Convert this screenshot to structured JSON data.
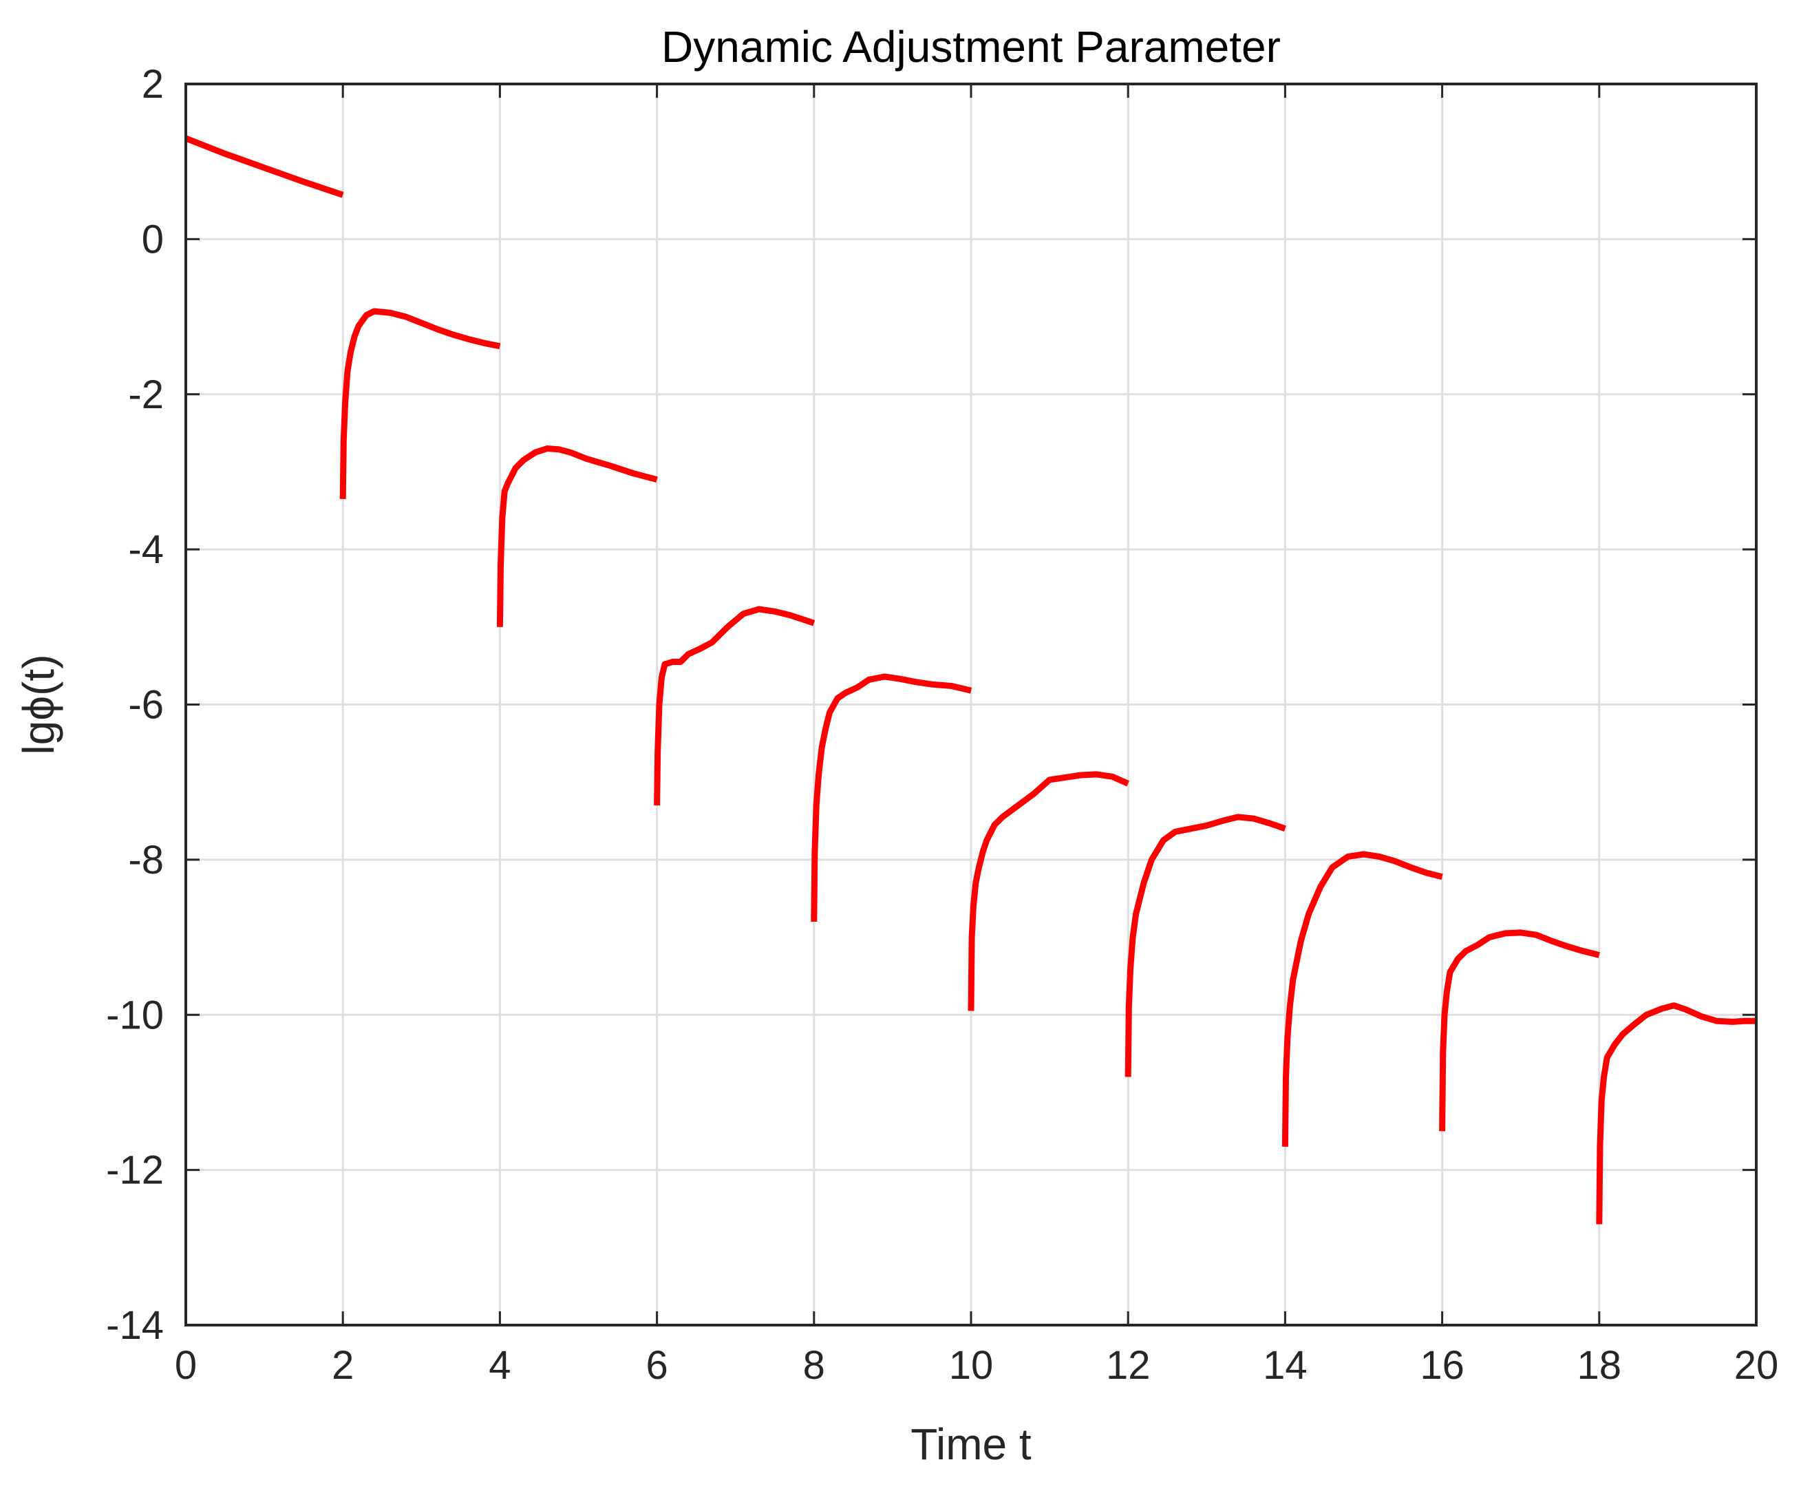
{
  "chart_data": {
    "type": "line",
    "title": "Dynamic Adjustment Parameter",
    "xlabel": "Time t",
    "ylabel": "lgϕ(t)",
    "xlim": [
      0,
      20
    ],
    "ylim": [
      -14,
      2
    ],
    "xticks": [
      0,
      2,
      4,
      6,
      8,
      10,
      12,
      14,
      16,
      18,
      20
    ],
    "yticks": [
      2,
      0,
      -2,
      -4,
      -6,
      -8,
      -10,
      -12,
      -14
    ],
    "xtick_labels": [
      "0",
      "2",
      "4",
      "6",
      "8",
      "10",
      "12",
      "14",
      "16",
      "18",
      "20"
    ],
    "ytick_labels": [
      "2",
      "0",
      "-2",
      "-4",
      "-6",
      "-8",
      "-10",
      "-12",
      "-14"
    ],
    "grid": true,
    "legend": null,
    "line_color": "#ff0000",
    "series": [
      {
        "segments": [
          {
            "x": [
              0,
              0.5,
              1,
              1.5,
              2
            ],
            "y": [
              1.3,
              1.1,
              0.92,
              0.74,
              0.57
            ]
          },
          {
            "x": [
              2.0,
              2.01,
              2.03,
              2.06,
              2.1,
              2.15,
              2.2,
              2.3,
              2.4,
              2.6,
              2.8,
              3.0,
              3.2,
              3.4,
              3.6,
              3.8,
              4.0
            ],
            "y": [
              -3.35,
              -2.6,
              -2.1,
              -1.7,
              -1.45,
              -1.25,
              -1.12,
              -0.98,
              -0.93,
              -0.95,
              -1.0,
              -1.08,
              -1.16,
              -1.23,
              -1.29,
              -1.34,
              -1.38
            ]
          },
          {
            "x": [
              4.0,
              4.01,
              4.03,
              4.06,
              4.1,
              4.2,
              4.3,
              4.45,
              4.6,
              4.75,
              4.9,
              5.1,
              5.4,
              5.7,
              6.0
            ],
            "y": [
              -5.0,
              -4.2,
              -3.6,
              -3.25,
              -3.15,
              -2.95,
              -2.85,
              -2.75,
              -2.7,
              -2.71,
              -2.75,
              -2.83,
              -2.92,
              -3.02,
              -3.1
            ]
          },
          {
            "x": [
              6.0,
              6.01,
              6.03,
              6.06,
              6.1,
              6.2,
              6.3,
              6.4,
              6.55,
              6.7,
              6.9,
              7.1,
              7.3,
              7.5,
              7.7,
              7.85,
              8.0
            ],
            "y": [
              -7.3,
              -6.6,
              -6.0,
              -5.65,
              -5.48,
              -5.45,
              -5.45,
              -5.35,
              -5.28,
              -5.2,
              -5.0,
              -4.83,
              -4.77,
              -4.8,
              -4.85,
              -4.9,
              -4.95
            ]
          },
          {
            "x": [
              8.0,
              8.01,
              8.03,
              8.06,
              8.1,
              8.15,
              8.2,
              8.3,
              8.4,
              8.55,
              8.7,
              8.9,
              9.1,
              9.3,
              9.5,
              9.75,
              10.0
            ],
            "y": [
              -8.8,
              -7.9,
              -7.3,
              -6.9,
              -6.55,
              -6.3,
              -6.1,
              -5.92,
              -5.85,
              -5.78,
              -5.68,
              -5.64,
              -5.67,
              -5.71,
              -5.74,
              -5.76,
              -5.82
            ]
          },
          {
            "x": [
              10.0,
              10.01,
              10.03,
              10.06,
              10.1,
              10.15,
              10.2,
              10.3,
              10.4,
              10.6,
              10.8,
              11.0,
              11.2,
              11.4,
              11.6,
              11.8,
              12.0
            ],
            "y": [
              -9.95,
              -9.0,
              -8.6,
              -8.3,
              -8.1,
              -7.9,
              -7.75,
              -7.55,
              -7.45,
              -7.3,
              -7.15,
              -6.97,
              -6.94,
              -6.91,
              -6.9,
              -6.93,
              -7.02
            ]
          },
          {
            "x": [
              12.0,
              12.01,
              12.03,
              12.06,
              12.1,
              12.2,
              12.3,
              12.45,
              12.6,
              12.8,
              13.0,
              13.2,
              13.4,
              13.6,
              13.8,
              14.0
            ],
            "y": [
              -10.8,
              -9.9,
              -9.4,
              -9.0,
              -8.7,
              -8.3,
              -8.0,
              -7.75,
              -7.64,
              -7.6,
              -7.56,
              -7.5,
              -7.45,
              -7.47,
              -7.53,
              -7.6
            ]
          },
          {
            "x": [
              14.0,
              14.01,
              14.03,
              14.06,
              14.1,
              14.2,
              14.3,
              14.45,
              14.6,
              14.8,
              15.0,
              15.2,
              15.4,
              15.6,
              15.8,
              16.0
            ],
            "y": [
              -11.7,
              -10.8,
              -10.3,
              -9.9,
              -9.55,
              -9.05,
              -8.7,
              -8.35,
              -8.1,
              -7.96,
              -7.93,
              -7.96,
              -8.02,
              -8.1,
              -8.17,
              -8.22
            ]
          },
          {
            "x": [
              16.0,
              16.01,
              16.03,
              16.06,
              16.1,
              16.2,
              16.3,
              16.45,
              16.6,
              16.8,
              17.0,
              17.2,
              17.4,
              17.6,
              17.8,
              18.0
            ],
            "y": [
              -11.5,
              -10.5,
              -10.0,
              -9.7,
              -9.45,
              -9.28,
              -9.18,
              -9.1,
              -9.0,
              -8.95,
              -8.94,
              -8.97,
              -9.05,
              -9.12,
              -9.18,
              -9.23
            ]
          },
          {
            "x": [
              18.0,
              18.01,
              18.03,
              18.06,
              18.1,
              18.2,
              18.3,
              18.45,
              18.6,
              18.8,
              18.95,
              19.1,
              19.3,
              19.5,
              19.7,
              19.85,
              20.0
            ],
            "y": [
              -12.7,
              -11.7,
              -11.1,
              -10.8,
              -10.55,
              -10.38,
              -10.25,
              -10.12,
              -10.0,
              -9.92,
              -9.88,
              -9.93,
              -10.02,
              -10.08,
              -10.09,
              -10.08,
              -10.08
            ]
          }
        ]
      }
    ]
  }
}
